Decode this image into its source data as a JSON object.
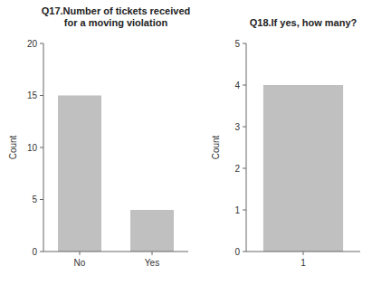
{
  "chart_data": [
    {
      "type": "bar",
      "title": "Q17.Number of tickets received\nfor a moving violation",
      "categories": [
        "No",
        "Yes"
      ],
      "values": [
        15,
        4
      ],
      "color": "#c0c0c0",
      "ylim": [
        0,
        20
      ],
      "yticks": [
        0,
        5,
        10,
        15,
        20
      ],
      "ylabel": "Count"
    },
    {
      "type": "bar",
      "title": "Q18.If yes, how many?",
      "categories": [
        "1"
      ],
      "values": [
        4
      ],
      "color": "#c0c0c0",
      "ylim": [
        0,
        5
      ],
      "yticks": [
        0,
        1,
        2,
        3,
        4,
        5
      ],
      "ylabel": "Count"
    }
  ]
}
